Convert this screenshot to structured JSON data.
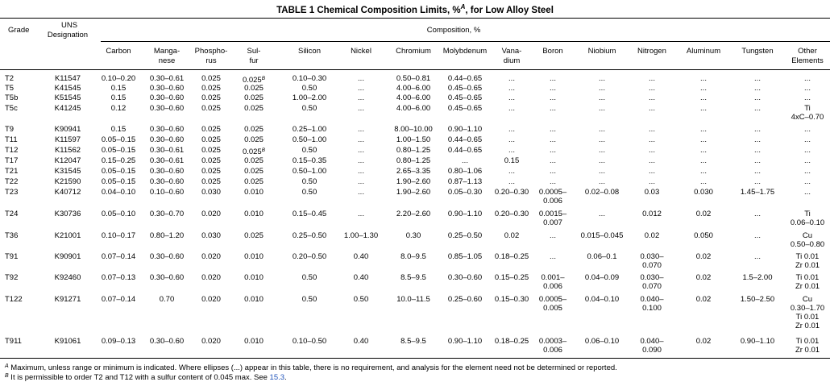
{
  "table": {
    "title": "TABLE 1  Chemical Composition Limits, %",
    "title_note": "A",
    "title_suffix": ", for Low Alloy Steel",
    "header": {
      "grade": "Grade",
      "uns": [
        "UNS",
        "Designation"
      ],
      "composition": "Composition, %",
      "elements": [
        [
          "Carbon"
        ],
        [
          "Manga-",
          "nese"
        ],
        [
          "Phospho-",
          "rus"
        ],
        [
          "Sul-",
          "fur"
        ],
        [
          "Silicon"
        ],
        [
          "Nickel"
        ],
        [
          "Chromium"
        ],
        [
          "Molybdenum"
        ],
        [
          "Vana-",
          "dium"
        ],
        [
          "Boron"
        ],
        [
          "Niobium"
        ],
        [
          "Nitrogen"
        ],
        [
          "Aluminum"
        ],
        [
          "Tungsten"
        ],
        [
          "Other",
          "Elements"
        ]
      ]
    },
    "rows": [
      {
        "grade": "T2",
        "uns": "K11547",
        "values": [
          [
            "0.10–0.20"
          ],
          [
            "0.30–0.61"
          ],
          [
            "0.025"
          ],
          [
            "0.025"
          ],
          [
            "0.10–0.30"
          ],
          [
            "..."
          ],
          [
            "0.50–0.81"
          ],
          [
            "0.44–0.65"
          ],
          [
            "..."
          ],
          [
            "..."
          ],
          [
            "..."
          ],
          [
            "..."
          ],
          [
            "..."
          ],
          [
            "..."
          ],
          [
            "..."
          ]
        ],
        "note": "B"
      },
      {
        "grade": "T5",
        "uns": "K41545",
        "values": [
          [
            "0.15"
          ],
          [
            "0.30–0.60"
          ],
          [
            "0.025"
          ],
          [
            "0.025"
          ],
          [
            "0.50"
          ],
          [
            "..."
          ],
          [
            "4.00–6.00"
          ],
          [
            "0.45–0.65"
          ],
          [
            "..."
          ],
          [
            "..."
          ],
          [
            "..."
          ],
          [
            "..."
          ],
          [
            "..."
          ],
          [
            "..."
          ],
          [
            "..."
          ]
        ]
      },
      {
        "grade": "T5b",
        "uns": "K51545",
        "values": [
          [
            "0.15"
          ],
          [
            "0.30–0.60"
          ],
          [
            "0.025"
          ],
          [
            "0.025"
          ],
          [
            "1.00–2.00"
          ],
          [
            "..."
          ],
          [
            "4.00–6.00"
          ],
          [
            "0.45–0.65"
          ],
          [
            "..."
          ],
          [
            "..."
          ],
          [
            "..."
          ],
          [
            "..."
          ],
          [
            "..."
          ],
          [
            "..."
          ],
          [
            "..."
          ]
        ]
      },
      {
        "grade": "T5c",
        "uns": "K41245",
        "values": [
          [
            "0.12"
          ],
          [
            "0.30–0.60"
          ],
          [
            "0.025"
          ],
          [
            "0.025"
          ],
          [
            "0.50"
          ],
          [
            "..."
          ],
          [
            "4.00–6.00"
          ],
          [
            "0.45–0.65"
          ],
          [
            "..."
          ],
          [
            "..."
          ],
          [
            "..."
          ],
          [
            "..."
          ],
          [
            "..."
          ],
          [
            "..."
          ],
          [
            "Ti",
            "4xC–0.70"
          ]
        ]
      },
      {
        "grade": "T9",
        "uns": "K90941",
        "values": [
          [
            "0.15"
          ],
          [
            "0.30–0.60"
          ],
          [
            "0.025"
          ],
          [
            "0.025"
          ],
          [
            "0.25–1.00"
          ],
          [
            "..."
          ],
          [
            "8.00–10.00"
          ],
          [
            "0.90–1.10"
          ],
          [
            "..."
          ],
          [
            "..."
          ],
          [
            "..."
          ],
          [
            "..."
          ],
          [
            "..."
          ],
          [
            "..."
          ],
          [
            "..."
          ]
        ]
      },
      {
        "grade": "T11",
        "uns": "K11597",
        "values": [
          [
            "0.05–0.15"
          ],
          [
            "0.30–0.60"
          ],
          [
            "0.025"
          ],
          [
            "0.025"
          ],
          [
            "0.50–1.00"
          ],
          [
            "..."
          ],
          [
            "1.00–1.50"
          ],
          [
            "0.44–0.65"
          ],
          [
            "..."
          ],
          [
            "..."
          ],
          [
            "..."
          ],
          [
            "..."
          ],
          [
            "..."
          ],
          [
            "..."
          ],
          [
            "..."
          ]
        ]
      },
      {
        "grade": "T12",
        "uns": "K11562",
        "values": [
          [
            "0.05–0.15"
          ],
          [
            "0.30–0.61"
          ],
          [
            "0.025"
          ],
          [
            "0.025"
          ],
          [
            "0.50"
          ],
          [
            "..."
          ],
          [
            "0.80–1.25"
          ],
          [
            "0.44–0.65"
          ],
          [
            "..."
          ],
          [
            "..."
          ],
          [
            "..."
          ],
          [
            "..."
          ],
          [
            "..."
          ],
          [
            "..."
          ],
          [
            "..."
          ]
        ],
        "note": "B"
      },
      {
        "grade": "T17",
        "uns": "K12047",
        "values": [
          [
            "0.15–0.25"
          ],
          [
            "0.30–0.61"
          ],
          [
            "0.025"
          ],
          [
            "0.025"
          ],
          [
            "0.15–0.35"
          ],
          [
            "..."
          ],
          [
            "0.80–1.25"
          ],
          [
            "..."
          ],
          [
            "0.15"
          ],
          [
            "..."
          ],
          [
            "..."
          ],
          [
            "..."
          ],
          [
            "..."
          ],
          [
            "..."
          ],
          [
            "..."
          ]
        ]
      },
      {
        "grade": "T21",
        "uns": "K31545",
        "values": [
          [
            "0.05–0.15"
          ],
          [
            "0.30–0.60"
          ],
          [
            "0.025"
          ],
          [
            "0.025"
          ],
          [
            "0.50–1.00"
          ],
          [
            "..."
          ],
          [
            "2.65–3.35"
          ],
          [
            "0.80–1.06"
          ],
          [
            "..."
          ],
          [
            "..."
          ],
          [
            "..."
          ],
          [
            "..."
          ],
          [
            "..."
          ],
          [
            "..."
          ],
          [
            "..."
          ]
        ]
      },
      {
        "grade": "T22",
        "uns": "K21590",
        "values": [
          [
            "0.05–0.15"
          ],
          [
            "0.30–0.60"
          ],
          [
            "0.025"
          ],
          [
            "0.025"
          ],
          [
            "0.50"
          ],
          [
            "..."
          ],
          [
            "1.90–2.60"
          ],
          [
            "0.87–1.13"
          ],
          [
            "..."
          ],
          [
            "..."
          ],
          [
            "..."
          ],
          [
            "..."
          ],
          [
            "..."
          ],
          [
            "..."
          ],
          [
            "..."
          ]
        ]
      },
      {
        "grade": "T23",
        "uns": "K40712",
        "values": [
          [
            "0.04–0.10"
          ],
          [
            "0.10–0.60"
          ],
          [
            "0.030"
          ],
          [
            "0.010"
          ],
          [
            "0.50"
          ],
          [
            "..."
          ],
          [
            "1.90–2.60"
          ],
          [
            "0.05–0.30"
          ],
          [
            "0.20–0.30"
          ],
          [
            "0.0005–",
            "0.006"
          ],
          [
            "0.02–0.08"
          ],
          [
            "0.03"
          ],
          [
            "0.030"
          ],
          [
            "1.45–1.75"
          ],
          [
            "..."
          ]
        ]
      },
      {
        "grade": "T24",
        "uns": "K30736",
        "values": [
          [
            "0.05–0.10"
          ],
          [
            "0.30–0.70"
          ],
          [
            "0.020"
          ],
          [
            "0.010"
          ],
          [
            "0.15–0.45"
          ],
          [
            "..."
          ],
          [
            "2.20–2.60"
          ],
          [
            "0.90–1.10"
          ],
          [
            "0.20–0.30"
          ],
          [
            "0.0015–",
            "0.007"
          ],
          [
            "..."
          ],
          [
            "0.012"
          ],
          [
            "0.02"
          ],
          [
            "..."
          ],
          [
            "Ti",
            "0.06–0.10"
          ]
        ]
      },
      {
        "grade": "T36",
        "uns": "K21001",
        "values": [
          [
            "0.10–0.17"
          ],
          [
            "0.80–1.20"
          ],
          [
            "0.030"
          ],
          [
            "0.025"
          ],
          [
            "0.25–0.50"
          ],
          [
            "1.00–1.30"
          ],
          [
            "0.30"
          ],
          [
            "0.25–0.50"
          ],
          [
            "0.02"
          ],
          [
            "..."
          ],
          [
            "0.015–0.045"
          ],
          [
            "0.02"
          ],
          [
            "0.050"
          ],
          [
            "..."
          ],
          [
            "Cu",
            "0.50–0.80"
          ]
        ]
      },
      {
        "grade": "T91",
        "uns": "K90901",
        "values": [
          [
            "0.07–0.14"
          ],
          [
            "0.30–0.60"
          ],
          [
            "0.020"
          ],
          [
            "0.010"
          ],
          [
            "0.20–0.50"
          ],
          [
            "0.40"
          ],
          [
            "8.0–9.5"
          ],
          [
            "0.85–1.05"
          ],
          [
            "0.18–0.25"
          ],
          [
            "..."
          ],
          [
            "0.06–0.1"
          ],
          [
            "0.030–",
            "0.070"
          ],
          [
            "0.02"
          ],
          [
            "..."
          ],
          [
            "Ti 0.01",
            "Zr 0.01"
          ]
        ]
      },
      {
        "grade": "T92",
        "uns": "K92460",
        "values": [
          [
            "0.07–0.13"
          ],
          [
            "0.30–0.60"
          ],
          [
            "0.020"
          ],
          [
            "0.010"
          ],
          [
            "0.50"
          ],
          [
            "0.40"
          ],
          [
            "8.5–9.5"
          ],
          [
            "0.30–0.60"
          ],
          [
            "0.15–0.25"
          ],
          [
            "0.001–",
            "0.006"
          ],
          [
            "0.04–0.09"
          ],
          [
            "0.030–",
            "0.070"
          ],
          [
            "0.02"
          ],
          [
            "1.5–2.00"
          ],
          [
            "Ti 0.01",
            "Zr 0.01"
          ]
        ]
      },
      {
        "grade": "T122",
        "uns": "K91271",
        "values": [
          [
            "0.07–0.14"
          ],
          [
            "0.70"
          ],
          [
            "0.020"
          ],
          [
            "0.010"
          ],
          [
            "0.50"
          ],
          [
            "0.50"
          ],
          [
            "10.0–11.5"
          ],
          [
            "0.25–0.60"
          ],
          [
            "0.15–0.30"
          ],
          [
            "0.0005–",
            "0.005"
          ],
          [
            "0.04–0.10"
          ],
          [
            "0.040–",
            "0.100"
          ],
          [
            "0.02"
          ],
          [
            "1.50–2.50"
          ],
          [
            "Cu",
            "0.30–1.70",
            "Ti 0.01",
            "Zr 0.01"
          ]
        ]
      },
      {
        "grade": "T911",
        "uns": "K91061",
        "values": [
          [
            "0.09–0.13"
          ],
          [
            "0.30–0.60"
          ],
          [
            "0.020"
          ],
          [
            "0.010"
          ],
          [
            "0.10–0.50"
          ],
          [
            "0.40"
          ],
          [
            "8.5–9.5"
          ],
          [
            "0.90–1.10"
          ],
          [
            "0.18–0.25"
          ],
          [
            "0.0003–",
            "0.006"
          ],
          [
            "0.06–0.10"
          ],
          [
            "0.040–",
            "0.090"
          ],
          [
            "0.02"
          ],
          [
            "0.90–1.10"
          ],
          [
            "Ti 0.01",
            "Zr 0.01"
          ]
        ]
      }
    ],
    "footnotes": {
      "a": {
        "mark": "A",
        "text": " Maximum, unless range or minimum is indicated. Where ellipses (...) appear in this table, there is no requirement, and analysis for the element need not be determined or reported."
      },
      "b": {
        "mark": "B",
        "text": " It is permissible to order T2 and T12 with a sulfur content of 0.045 max. See ",
        "link": "15.3",
        "end": "."
      }
    }
  }
}
